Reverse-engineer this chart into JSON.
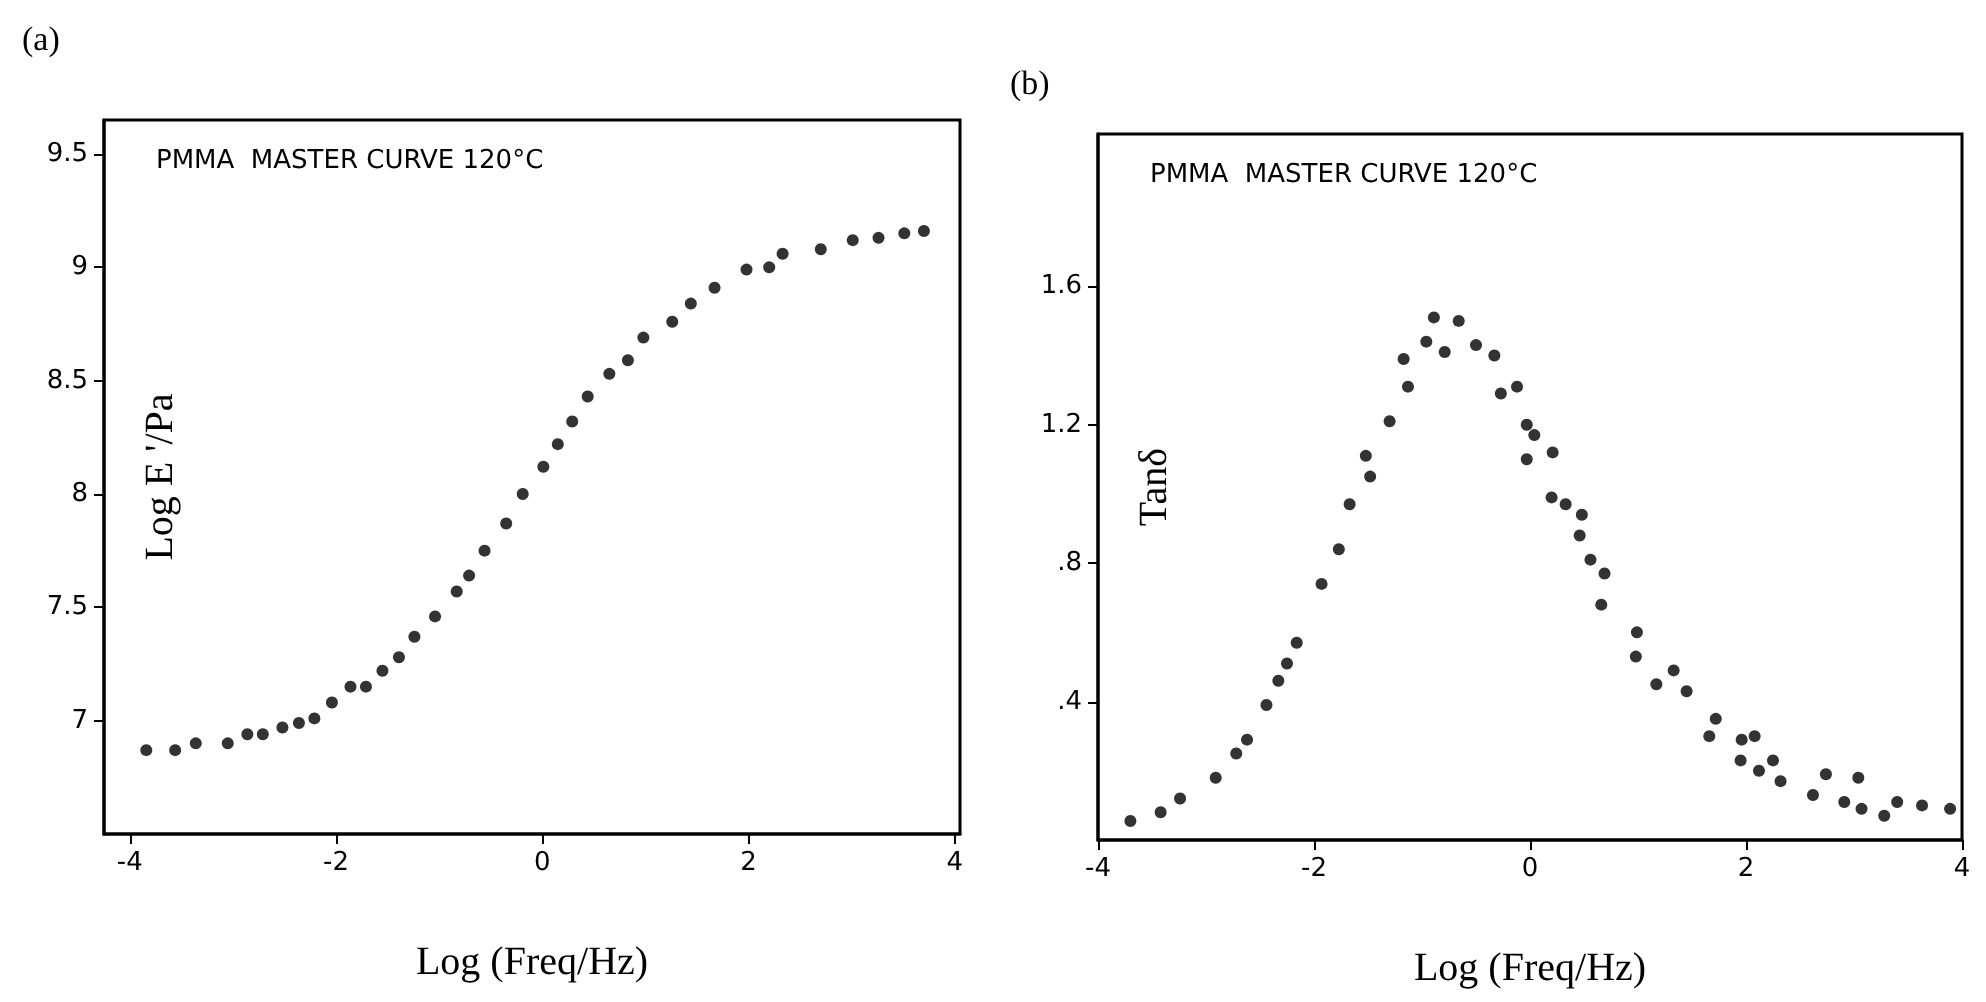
{
  "chart_data": [
    {
      "type": "scatter",
      "title": "(a)",
      "xlabel": "Log (Freq/Hz)",
      "ylabel": "Log E '/Pa",
      "annotations": [
        "PMMA  MASTER CURVE 120°C"
      ],
      "xlim": [
        -4.25,
        4.05
      ],
      "xticks": [
        -4,
        -2,
        0,
        2,
        4
      ],
      "ylim": [
        6.5,
        9.65
      ],
      "yticks": [
        7,
        7.5,
        8,
        8.5,
        9,
        9.5
      ],
      "marker": "circle",
      "series": [
        {
          "color": "#000000",
          "x": [
            -3.84,
            -3.56,
            -3.36,
            -3.05,
            -2.86,
            -2.71,
            -2.52,
            -2.36,
            -2.21,
            -2.04,
            -1.86,
            -1.71,
            -1.55,
            -1.39,
            -1.24,
            -1.04,
            -0.83,
            -0.71,
            -0.56,
            -0.35,
            -0.19,
            0.01,
            0.15,
            0.29,
            0.44,
            0.65,
            0.83,
            0.98,
            1.26,
            1.44,
            1.67,
            1.98,
            2.2,
            2.33,
            2.7,
            3.01,
            3.26,
            3.51,
            3.7
          ],
          "values": [
            6.87,
            6.87,
            6.9,
            6.9,
            6.94,
            6.94,
            6.97,
            6.99,
            7.01,
            7.08,
            7.15,
            7.15,
            7.22,
            7.28,
            7.37,
            7.46,
            7.57,
            7.64,
            7.75,
            7.87,
            8.0,
            8.12,
            8.22,
            8.32,
            8.43,
            8.53,
            8.59,
            8.69,
            8.76,
            8.84,
            8.91,
            8.99,
            9.0,
            9.06,
            9.08,
            9.12,
            9.13,
            9.15,
            9.16
          ]
        }
      ]
    },
    {
      "type": "scatter",
      "title": "(b)",
      "xlabel": "Log (Freq/Hz)",
      "ylabel": "Tanδ",
      "annotations": [
        "PMMA  MASTER CURVE 120°C"
      ],
      "xlim": [
        -4,
        4
      ],
      "xticks": [
        -4,
        -2,
        0,
        2,
        4
      ],
      "ylim": [
        0,
        2.04
      ],
      "yticks": [
        {
          "value": 0.4,
          "label": ".4"
        },
        {
          "value": 0.8,
          "label": ".8"
        },
        1.2,
        1.6
      ],
      "marker": "circle",
      "series": [
        {
          "color": "#000000",
          "x": [
            -3.7,
            -3.42,
            -3.24,
            -2.91,
            -2.72,
            -2.62,
            -2.44,
            -2.33,
            -2.25,
            -2.16,
            -1.93,
            -1.77,
            -1.67,
            -1.48,
            -1.52,
            -1.3,
            -1.13,
            -1.17,
            -0.96,
            -0.79,
            -0.89,
            -0.66,
            -0.5,
            -0.33,
            -0.27,
            -0.12,
            -0.03,
            0.04,
            -0.03,
            0.21,
            0.2,
            0.33,
            0.48,
            0.46,
            0.56,
            0.69,
            0.66,
            0.99,
            0.98,
            1.17,
            1.33,
            1.45,
            1.66,
            1.72,
            1.96,
            2.08,
            1.95,
            2.12,
            2.25,
            2.32,
            2.62,
            2.74,
            2.91,
            3.04,
            3.07,
            3.28,
            3.4,
            3.63,
            3.89
          ],
          "values": [
            0.055,
            0.08,
            0.12,
            0.18,
            0.25,
            0.29,
            0.39,
            0.46,
            0.51,
            0.57,
            0.74,
            0.84,
            0.97,
            1.05,
            1.11,
            1.21,
            1.31,
            1.39,
            1.44,
            1.41,
            1.51,
            1.5,
            1.43,
            1.4,
            1.29,
            1.31,
            1.2,
            1.17,
            1.1,
            1.12,
            0.99,
            0.97,
            0.94,
            0.88,
            0.81,
            0.77,
            0.68,
            0.6,
            0.53,
            0.45,
            0.49,
            0.43,
            0.3,
            0.35,
            0.29,
            0.3,
            0.23,
            0.2,
            0.23,
            0.17,
            0.13,
            0.19,
            0.11,
            0.18,
            0.09,
            0.07,
            0.11,
            0.1,
            0.09
          ]
        }
      ]
    }
  ]
}
